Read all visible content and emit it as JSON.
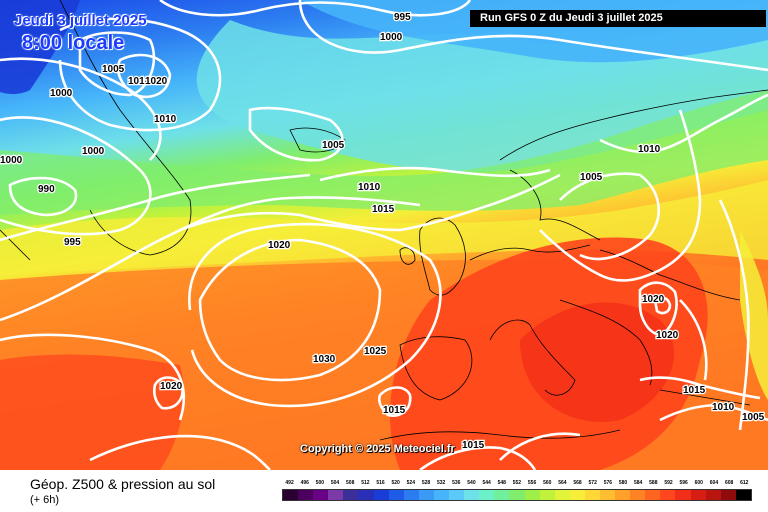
{
  "header": {
    "date_text": "Jeudi 3 juillet 2025",
    "time_text": "8:00 locale",
    "run_text": "Run GFS 0 Z du Jeudi 3 juillet 2025",
    "copyright": "Copyright © 2025 Meteociel.fr"
  },
  "footer": {
    "title": "Géop. Z500 & pression au sol",
    "subtitle": "(+ 6h)"
  },
  "legend": {
    "values": [
      "492",
      "496",
      "500",
      "504",
      "508",
      "512",
      "516",
      "520",
      "524",
      "528",
      "532",
      "536",
      "540",
      "544",
      "548",
      "552",
      "556",
      "560",
      "564",
      "568",
      "572",
      "576",
      "580",
      "584",
      "588",
      "592",
      "596",
      "600",
      "604",
      "608",
      "612"
    ],
    "colors": [
      "#2a0030",
      "#4b0060",
      "#6a0085",
      "#7b3aa8",
      "#3c2f9a",
      "#2a2fb8",
      "#1a3cd8",
      "#1e5ce8",
      "#2c7cf0",
      "#3a9af6",
      "#46b4fa",
      "#5ccaf8",
      "#6ee0e8",
      "#6cf0c8",
      "#70f09c",
      "#80ee6c",
      "#9ef048",
      "#c0f23c",
      "#e2f43a",
      "#f6ee38",
      "#ffd838",
      "#ffbe30",
      "#ffa028",
      "#ff8224",
      "#ff6420",
      "#ff461c",
      "#f22e18",
      "#d81e14",
      "#b81410",
      "#900c0c",
      "#000000"
    ]
  },
  "isobars": [
    "995",
    "1000",
    "1005",
    "1010",
    "1020",
    "1000",
    "1010",
    "1000",
    "1005",
    "1000",
    "990",
    "1000",
    "995",
    "1010",
    "1015",
    "1020",
    "1010",
    "1005",
    "1020",
    "1020",
    "1030",
    "1025",
    "1020",
    "1015",
    "1015",
    "1015",
    "1010",
    "1005"
  ],
  "colors": {
    "title_blue": "#1a3cff",
    "banner_bg": "#000000",
    "isobar": "#ffffff"
  }
}
